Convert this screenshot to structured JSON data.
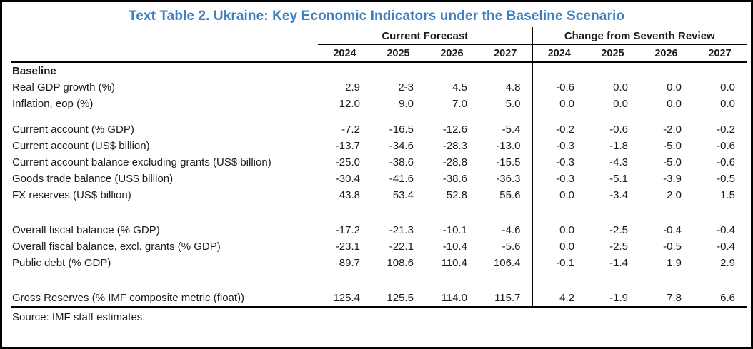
{
  "title": "Text Table 2. Ukraine: Key Economic Indicators under the Baseline Scenario",
  "colors": {
    "title_blue": "#3E7FBF",
    "text": "#1c1c1c",
    "rule": "#000000"
  },
  "table": {
    "groups": [
      {
        "label": "Current Forecast",
        "years": [
          "2024",
          "2025",
          "2026",
          "2027"
        ]
      },
      {
        "label": "Change from Seventh Review",
        "years": [
          "2024",
          "2025",
          "2026",
          "2027"
        ]
      }
    ],
    "section_header": "Baseline",
    "rows": [
      {
        "label": "Real GDP growth (%)",
        "gap_before": "none",
        "forecast": [
          "2.9",
          "2-3",
          "4.5",
          "4.8"
        ],
        "change": [
          "-0.6",
          "0.0",
          "0.0",
          "0.0"
        ]
      },
      {
        "label": "Inflation, eop (%)",
        "gap_before": "none",
        "forecast": [
          "12.0",
          "9.0",
          "7.0",
          "5.0"
        ],
        "change": [
          "0.0",
          "0.0",
          "0.0",
          "0.0"
        ]
      },
      {
        "label": "Current account (% GDP)",
        "gap_before": "small",
        "forecast": [
          "-7.2",
          "-16.5",
          "-12.6",
          "-5.4"
        ],
        "change": [
          "-0.2",
          "-0.6",
          "-2.0",
          "-0.2"
        ]
      },
      {
        "label": "Current account (US$ billion)",
        "gap_before": "none",
        "forecast": [
          "-13.7",
          "-34.6",
          "-28.3",
          "-13.0"
        ],
        "change": [
          "-0.3",
          "-1.8",
          "-5.0",
          "-0.6"
        ]
      },
      {
        "label": "Current account balance excluding grants (US$ billion)",
        "gap_before": "none",
        "forecast": [
          "-25.0",
          "-38.6",
          "-28.8",
          "-15.5"
        ],
        "change": [
          "-0.3",
          "-4.3",
          "-5.0",
          "-0.6"
        ]
      },
      {
        "label": "Goods trade balance (US$ billion)",
        "gap_before": "none",
        "forecast": [
          "-30.4",
          "-41.6",
          "-38.6",
          "-36.3"
        ],
        "change": [
          "-0.3",
          "-5.1",
          "-3.9",
          "-0.5"
        ]
      },
      {
        "label": "FX reserves (US$ billion)",
        "gap_before": "none",
        "forecast": [
          "43.8",
          "53.4",
          "52.8",
          "55.6"
        ],
        "change": [
          "0.0",
          "-3.4",
          "2.0",
          "1.5"
        ]
      },
      {
        "label": "Overall fiscal balance (% GDP)",
        "gap_before": "large",
        "forecast": [
          "-17.2",
          "-21.3",
          "-10.1",
          "-4.6"
        ],
        "change": [
          "0.0",
          "-2.5",
          "-0.4",
          "-0.4"
        ]
      },
      {
        "label": "Overall fiscal balance, excl. grants (% GDP)",
        "gap_before": "none",
        "forecast": [
          "-23.1",
          "-22.1",
          "-10.4",
          "-5.6"
        ],
        "change": [
          "0.0",
          "-2.5",
          "-0.5",
          "-0.4"
        ]
      },
      {
        "label": "Public debt (% GDP)",
        "gap_before": "none",
        "forecast": [
          "89.7",
          "108.6",
          "110.4",
          "106.4"
        ],
        "change": [
          "-0.1",
          "-1.4",
          "1.9",
          "2.9"
        ]
      },
      {
        "label": "Gross Reserves (% IMF composite metric (float))",
        "gap_before": "large",
        "forecast": [
          "125.4",
          "125.5",
          "114.0",
          "115.7"
        ],
        "change": [
          "4.2",
          "-1.9",
          "7.8",
          "6.6"
        ]
      }
    ],
    "source": "Source: IMF staff estimates."
  }
}
